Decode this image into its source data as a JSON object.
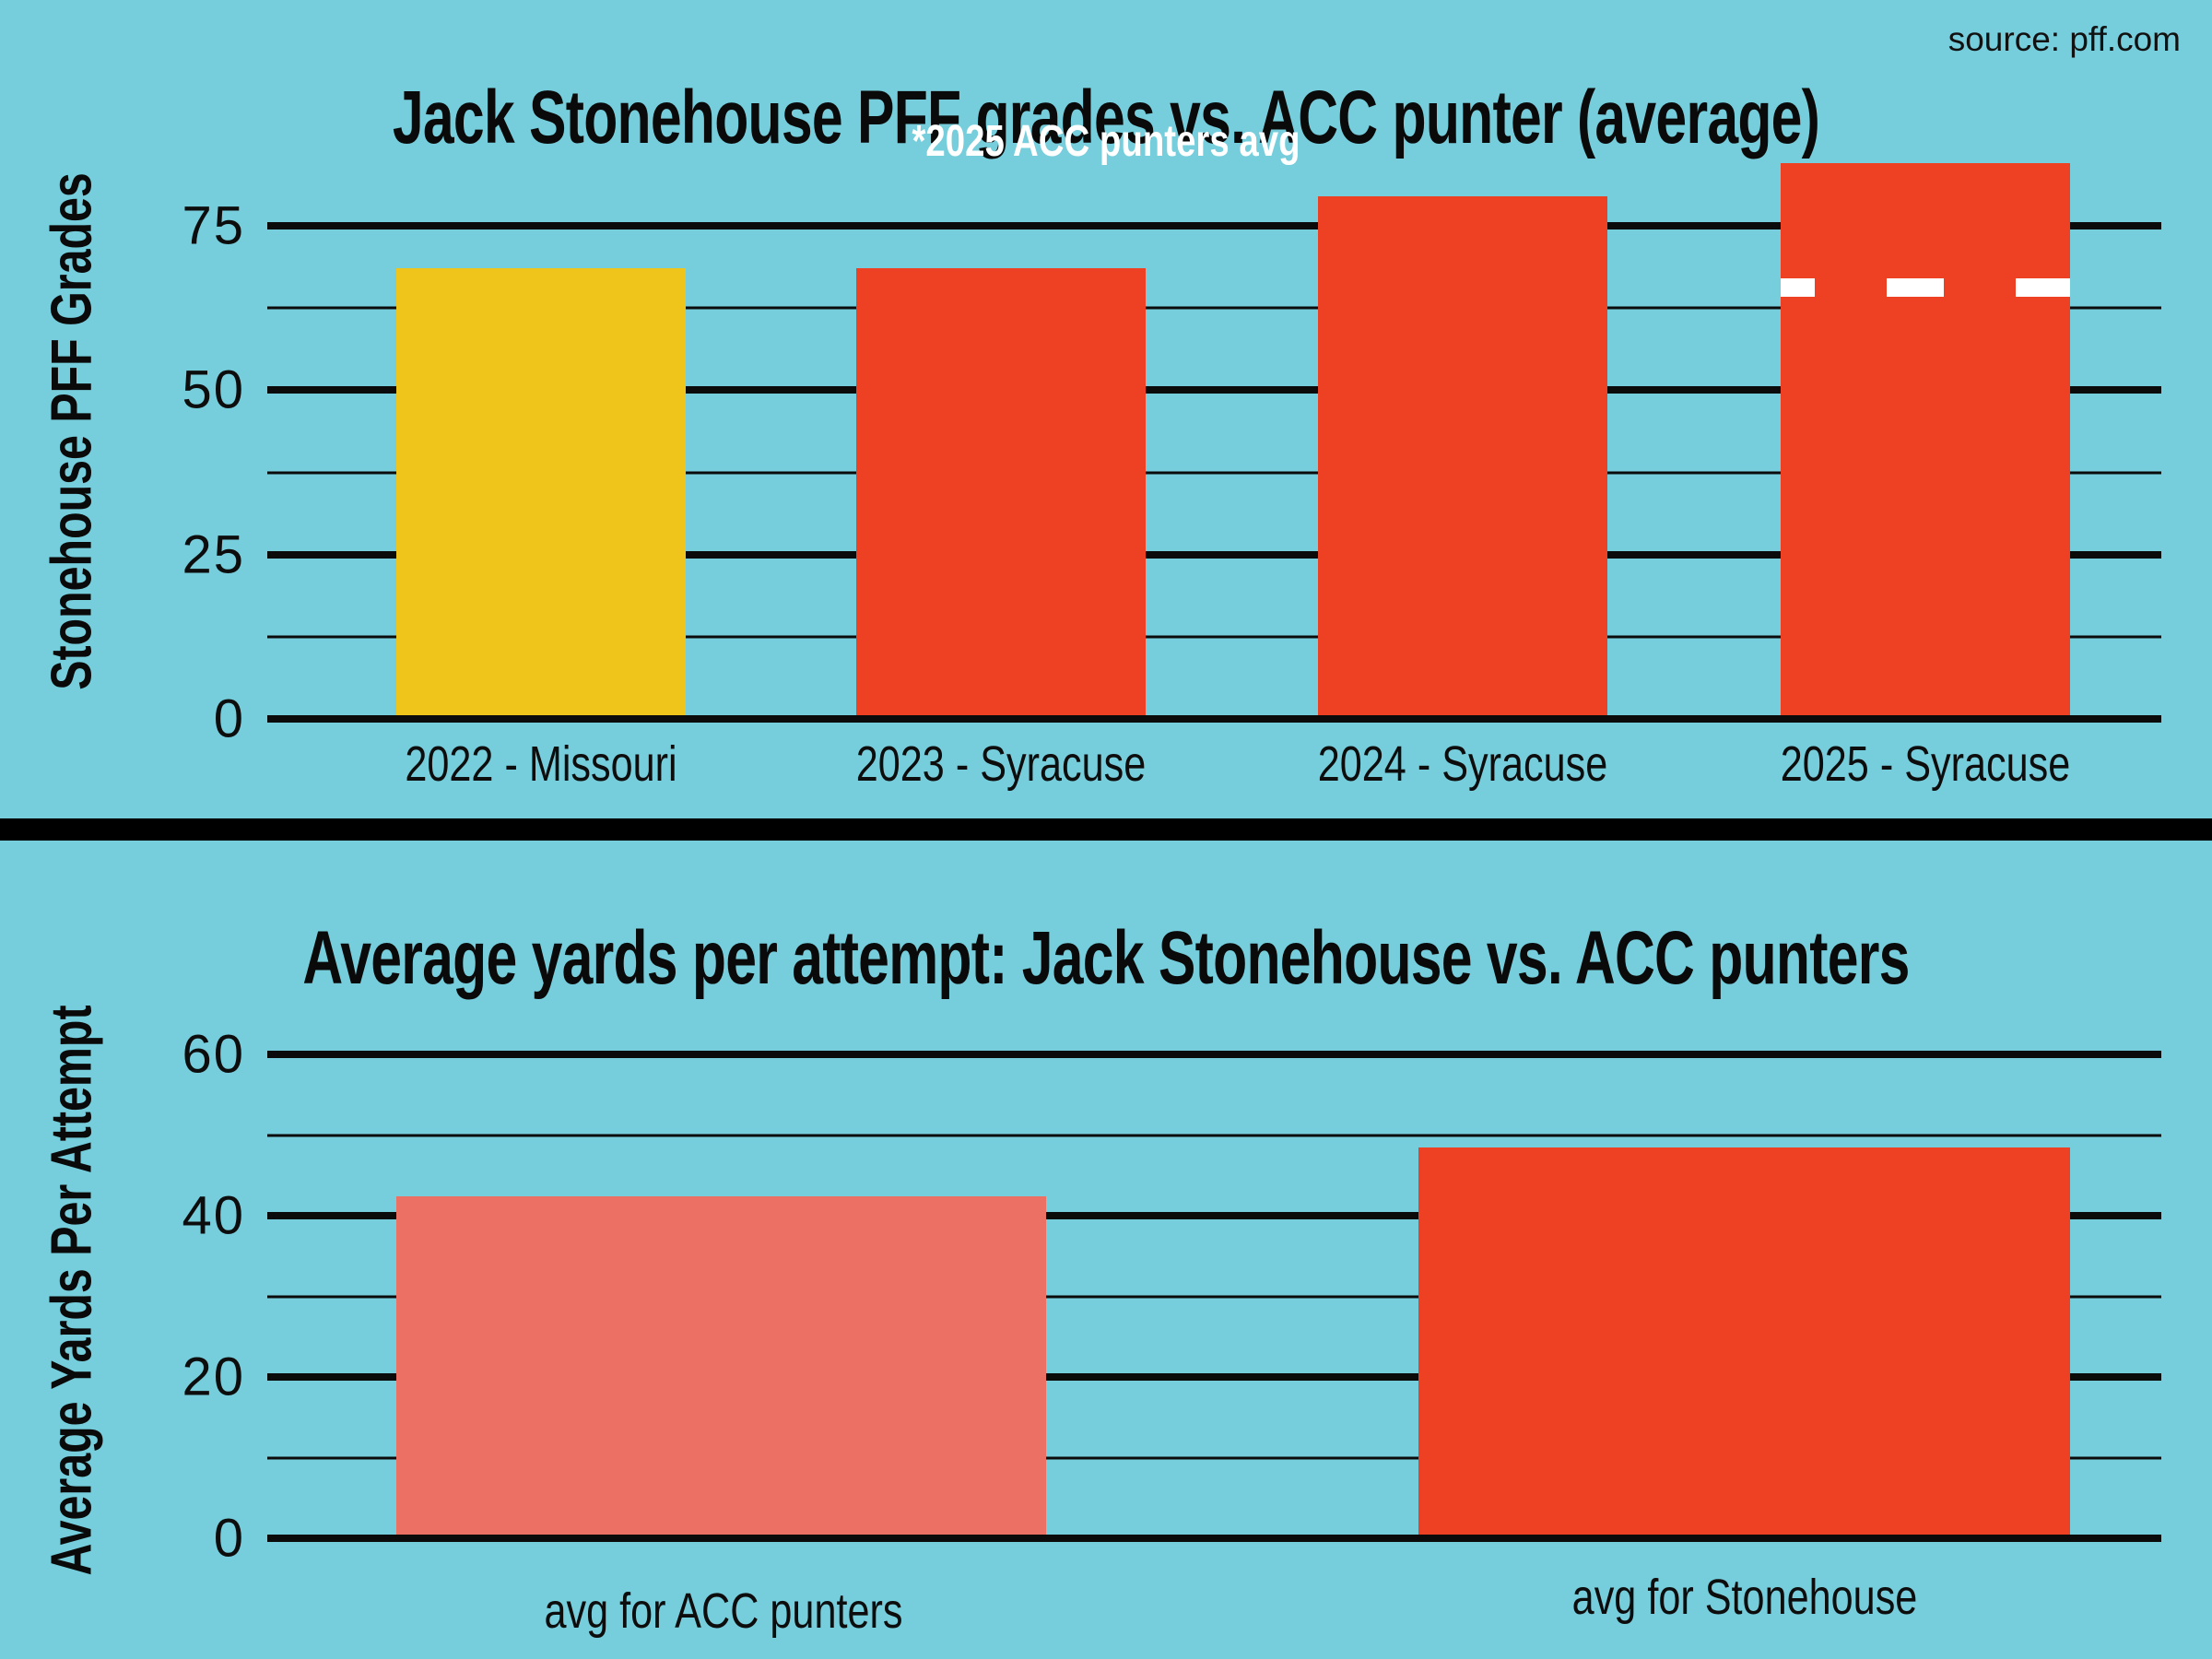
{
  "page": {
    "background_color": "#76CDDB",
    "source_note": "source: pff.com"
  },
  "colors": {
    "background": "#76CDDB",
    "bar_yellow": "#EFC51C",
    "bar_red": "#EE4123",
    "bar_salmon": "#EC7164",
    "grid_black": "#0B0B0B",
    "reference_white": "#FFFFFF"
  },
  "chart_data": [
    {
      "type": "bar",
      "title": "Jack Stonehouse PFF grades vs. ACC punter (average)",
      "subtitle": "*2025 ACC punters avg",
      "ylabel": "Stonehouse PFF Grades",
      "xlabel": "",
      "categories": [
        "2022 - Missouri",
        "2023 - Syracuse",
        "2024 - Syracuse",
        "2025 - Syracuse"
      ],
      "values": [
        68,
        68,
        79,
        84
      ],
      "bar_colors": [
        "#EFC51C",
        "#EE4123",
        "#EE4123",
        "#EE4123"
      ],
      "ylim": [
        0,
        87.5
      ],
      "yticks": [
        0,
        25,
        50,
        75
      ],
      "minor_gridlines": [
        12.5,
        37.5,
        62.5
      ],
      "grid": "on",
      "legend": "none",
      "reference_line": {
        "value": 65,
        "meaning": "2025 ACC punters avg",
        "style": "dashed",
        "color": "#FFFFFF",
        "on_bar_index": 3
      }
    },
    {
      "type": "bar",
      "title": "Average yards per attempt: Jack Stonehouse vs. ACC punters",
      "subtitle": "",
      "ylabel": "Average Yards Per Attempt",
      "xlabel": "",
      "categories": [
        "avg for ACC punters",
        "avg for Stonehouse"
      ],
      "values": [
        42,
        48
      ],
      "bar_colors": [
        "#EC7164",
        "#EE4123"
      ],
      "ylim": [
        0,
        60
      ],
      "yticks": [
        0,
        20,
        40,
        60
      ],
      "minor_gridlines": [
        10,
        30,
        50
      ],
      "grid": "on",
      "legend": "none"
    }
  ]
}
